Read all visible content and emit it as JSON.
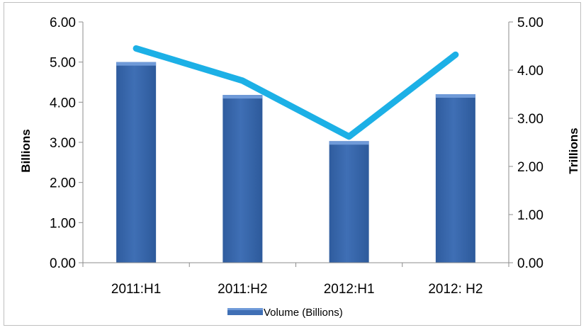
{
  "chart_data": {
    "type": "bar",
    "categories": [
      "2011:H1",
      "2011:H2",
      "2012:H1",
      "2012: H2"
    ],
    "series": [
      {
        "name": "Volume (Billions)",
        "type": "bar",
        "axis": "left",
        "values": [
          5.0,
          4.18,
          3.03,
          4.2
        ]
      },
      {
        "type": "line",
        "axis": "right",
        "values": [
          4.45,
          3.78,
          2.62,
          4.32
        ]
      }
    ],
    "ylabel": "Billions",
    "y2label": "Trillions",
    "ylim": [
      0,
      6
    ],
    "y2lim": [
      0,
      5
    ],
    "yticks": [
      "0.00",
      "1.00",
      "2.00",
      "3.00",
      "4.00",
      "5.00",
      "6.00"
    ],
    "y2ticks": [
      "0.00",
      "1.00",
      "2.00",
      "3.00",
      "4.00",
      "5.00"
    ],
    "grid": false,
    "legend": "bottom",
    "colors": {
      "bar": "#3f6fb5",
      "bar_top": "#6f9ad8",
      "line": "#1cb0e6"
    }
  }
}
